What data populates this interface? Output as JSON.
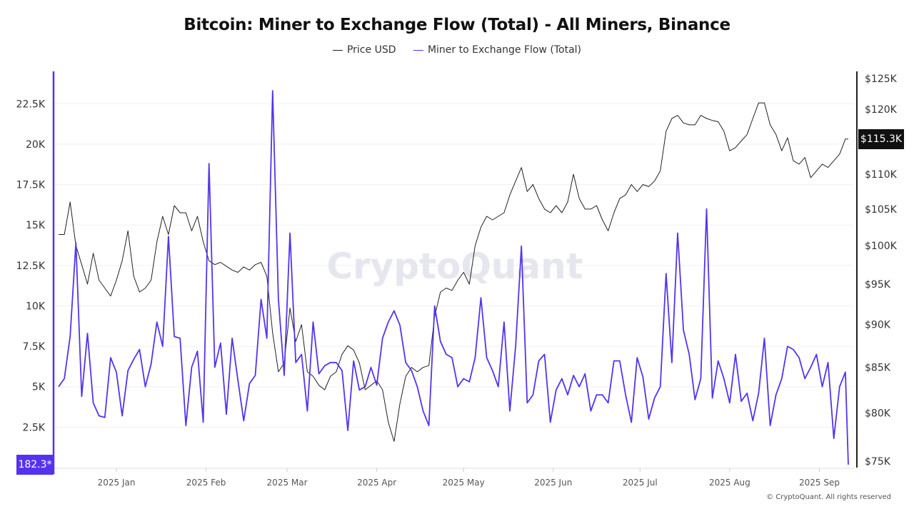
{
  "title": "Bitcoin: Miner to Exchange Flow (Total) - All Miners, Binance",
  "legend": [
    {
      "label": "Price USD",
      "color": "#222222"
    },
    {
      "label": "Miner to Exchange Flow (Total)",
      "color": "#5533ee"
    }
  ],
  "watermark": "CryptoQuant",
  "copyright": "© CryptoQuant. All rights reserved",
  "chart_data": {
    "type": "line",
    "title": "Bitcoin: Miner to Exchange Flow (Total) - All Miners, Binance",
    "x_tick_labels": [
      "2025 Jan",
      "2025 Feb",
      "2025 Mar",
      "2025 Apr",
      "2025 May",
      "2025 Jun",
      "2025 Jul",
      "2025 Aug",
      "2025 Sep"
    ],
    "x_tick_dates": [
      "2025-01-01",
      "2025-02-01",
      "2025-03-01",
      "2025-04-01",
      "2025-05-01",
      "2025-06-01",
      "2025-07-01",
      "2025-08-01",
      "2025-09-01"
    ],
    "left_axis": {
      "series": "Miner to Exchange Flow (Total)",
      "scale": "linear",
      "range": [
        0,
        24500
      ],
      "ticks": [
        2500,
        5000,
        7500,
        10000,
        12500,
        15000,
        17500,
        20000,
        22500
      ],
      "tick_labels": [
        "2.5K",
        "5K",
        "7.5K",
        "10K",
        "12.5K",
        "15K",
        "17.5K",
        "20K",
        "22.5K"
      ],
      "color": "#5533ee",
      "last_value_label": "182.3*"
    },
    "right_axis": {
      "series": "Price USD",
      "scale": "log",
      "range": [
        74500,
        128000
      ],
      "ticks": [
        75000,
        80000,
        85000,
        90000,
        95000,
        100000,
        105000,
        110000,
        120000,
        125000
      ],
      "tick_labels": [
        "$75K",
        "$80K",
        "$85K",
        "$90K",
        "$95K",
        "$100K",
        "$105K",
        "$110K",
        "$120K",
        "$125K"
      ],
      "color": "#222222",
      "last_value_label": "$115.3K"
    },
    "grid": true,
    "legend_position": "top-center",
    "x": [
      "2024-12-12",
      "2024-12-14",
      "2024-12-16",
      "2024-12-18",
      "2024-12-20",
      "2024-12-22",
      "2024-12-24",
      "2024-12-26",
      "2024-12-28",
      "2024-12-30",
      "2025-01-01",
      "2025-01-03",
      "2025-01-05",
      "2025-01-07",
      "2025-01-09",
      "2025-01-11",
      "2025-01-13",
      "2025-01-15",
      "2025-01-17",
      "2025-01-19",
      "2025-01-21",
      "2025-01-23",
      "2025-01-25",
      "2025-01-27",
      "2025-01-29",
      "2025-01-31",
      "2025-02-02",
      "2025-02-04",
      "2025-02-06",
      "2025-02-08",
      "2025-02-10",
      "2025-02-12",
      "2025-02-14",
      "2025-02-16",
      "2025-02-18",
      "2025-02-20",
      "2025-02-22",
      "2025-02-24",
      "2025-02-26",
      "2025-02-28",
      "2025-03-02",
      "2025-03-04",
      "2025-03-06",
      "2025-03-08",
      "2025-03-10",
      "2025-03-12",
      "2025-03-14",
      "2025-03-16",
      "2025-03-18",
      "2025-03-20",
      "2025-03-22",
      "2025-03-24",
      "2025-03-26",
      "2025-03-28",
      "2025-03-30",
      "2025-04-01",
      "2025-04-03",
      "2025-04-05",
      "2025-04-07",
      "2025-04-09",
      "2025-04-11",
      "2025-04-13",
      "2025-04-15",
      "2025-04-17",
      "2025-04-19",
      "2025-04-21",
      "2025-04-23",
      "2025-04-25",
      "2025-04-27",
      "2025-04-29",
      "2025-05-01",
      "2025-05-03",
      "2025-05-05",
      "2025-05-07",
      "2025-05-09",
      "2025-05-11",
      "2025-05-13",
      "2025-05-15",
      "2025-05-17",
      "2025-05-19",
      "2025-05-21",
      "2025-05-23",
      "2025-05-25",
      "2025-05-27",
      "2025-05-29",
      "2025-05-31",
      "2025-06-02",
      "2025-06-04",
      "2025-06-06",
      "2025-06-08",
      "2025-06-10",
      "2025-06-12",
      "2025-06-14",
      "2025-06-16",
      "2025-06-18",
      "2025-06-20",
      "2025-06-22",
      "2025-06-24",
      "2025-06-26",
      "2025-06-28",
      "2025-06-30",
      "2025-07-02",
      "2025-07-04",
      "2025-07-06",
      "2025-07-08",
      "2025-07-10",
      "2025-07-12",
      "2025-07-14",
      "2025-07-16",
      "2025-07-18",
      "2025-07-20",
      "2025-07-22",
      "2025-07-24",
      "2025-07-26",
      "2025-07-28",
      "2025-07-30",
      "2025-08-01",
      "2025-08-03",
      "2025-08-05",
      "2025-08-07",
      "2025-08-09",
      "2025-08-11",
      "2025-08-13",
      "2025-08-15",
      "2025-08-17",
      "2025-08-19",
      "2025-08-21",
      "2025-08-23",
      "2025-08-25",
      "2025-08-27",
      "2025-08-29",
      "2025-08-31",
      "2025-09-02",
      "2025-09-04",
      "2025-09-06",
      "2025-09-08",
      "2025-09-10",
      "2025-09-11"
    ],
    "series": [
      {
        "name": "Price USD",
        "axis": "right",
        "color": "#222222",
        "values": [
          101500,
          101500,
          106000,
          100000,
          97500,
          95000,
          99000,
          95500,
          94500,
          93500,
          95500,
          98000,
          102000,
          96000,
          94000,
          94500,
          95500,
          100500,
          104000,
          101500,
          105500,
          104500,
          104500,
          102000,
          104000,
          100500,
          98000,
          97500,
          97800,
          97300,
          96800,
          96500,
          97200,
          96800,
          97500,
          97800,
          96000,
          89000,
          84500,
          85500,
          92000,
          88000,
          90000,
          84500,
          84000,
          83000,
          82500,
          84000,
          84500,
          86500,
          87500,
          87000,
          85500,
          82500,
          83000,
          83500,
          82500,
          79000,
          77000,
          81000,
          84000,
          85000,
          84500,
          85000,
          85200,
          91000,
          94000,
          94500,
          94200,
          95500,
          96500,
          95000,
          100000,
          102500,
          104000,
          103500,
          104000,
          104500,
          107000,
          109000,
          111000,
          107500,
          108500,
          106500,
          105000,
          104500,
          105500,
          104500,
          106000,
          110000,
          106500,
          105000,
          105000,
          105500,
          103500,
          102000,
          104500,
          106500,
          107000,
          108500,
          107500,
          108500,
          108200,
          109000,
          110500,
          116500,
          118500,
          119000,
          117800,
          117500,
          117500,
          119000,
          118500,
          118200,
          118000,
          116500,
          113500,
          114000,
          115000,
          116000,
          118500,
          121000,
          121000,
          117500,
          116000,
          113500,
          115500,
          112000,
          111500,
          112500,
          109500,
          110500,
          111500,
          111000,
          112000,
          113000,
          115300,
          115300
        ]
      },
      {
        "name": "Miner to Exchange Flow (Total)",
        "axis": "left",
        "color": "#5533ee",
        "values": [
          5000,
          5500,
          8100,
          13900,
          4400,
          8300,
          4000,
          3200,
          3100,
          6800,
          5900,
          3200,
          6000,
          6700,
          7300,
          5000,
          6400,
          9000,
          7500,
          14300,
          8100,
          8000,
          2600,
          6200,
          7200,
          2800,
          18800,
          6200,
          7700,
          3300,
          8000,
          5400,
          2900,
          5200,
          5700,
          10400,
          8000,
          23300,
          10400,
          5700,
          14500,
          6500,
          7000,
          3500,
          9000,
          5800,
          6300,
          6500,
          6500,
          6000,
          2300,
          6600,
          4800,
          5000,
          6200,
          5100,
          8000,
          9000,
          9700,
          8800,
          6500,
          6000,
          5000,
          3500,
          2600,
          10000,
          7800,
          7000,
          6800,
          5000,
          5500,
          5300,
          6800,
          10500,
          6800,
          6000,
          5000,
          9000,
          3500,
          7500,
          13700,
          4000,
          4500,
          6600,
          7000,
          2800,
          4800,
          5500,
          4500,
          5700,
          5000,
          5800,
          3500,
          4500,
          4500,
          4000,
          6600,
          6600,
          4500,
          2800,
          6800,
          5600,
          3000,
          4300,
          5000,
          12000,
          6500,
          14500,
          8500,
          7000,
          4200,
          5500,
          16000,
          4300,
          6600,
          5500,
          4000,
          7000,
          4100,
          4600,
          2900,
          4600,
          8000,
          2600,
          4500,
          5500,
          7500,
          7300,
          6800,
          5500,
          6200,
          7000,
          5000,
          6500,
          1800,
          5000,
          5900,
          182.3
        ]
      }
    ]
  }
}
